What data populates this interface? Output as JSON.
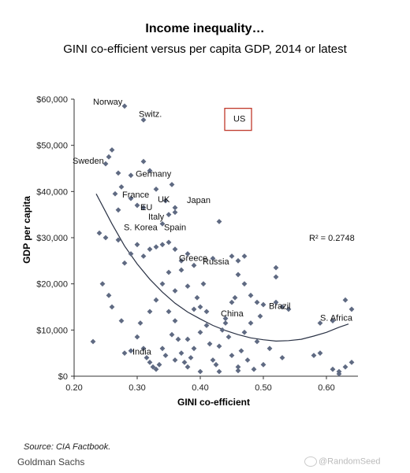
{
  "header": {
    "title": "Income inequality…",
    "subtitle": "GINI co-efficient versus per capita GDP, 2014 or latest"
  },
  "footer": {
    "source": "Source: CIA Factbook.",
    "publisher": "Goldman Sachs",
    "watermark": "@RandomSeed"
  },
  "chart_data": {
    "type": "scatter",
    "xlabel": "GINI co-efficient",
    "ylabel": "GDP per capita",
    "xlim": [
      0.2,
      0.65
    ],
    "ylim": [
      0,
      60000
    ],
    "x_ticks": [
      "0.20",
      "0.30",
      "0.40",
      "0.50",
      "0.60"
    ],
    "x_tick_values": [
      0.2,
      0.3,
      0.4,
      0.5,
      0.6
    ],
    "y_ticks": [
      "$0",
      "$10,000",
      "$20,000",
      "$30,000",
      "$40,000",
      "$50,000",
      "$60,000"
    ],
    "y_tick_values": [
      0,
      10000,
      20000,
      30000,
      40000,
      50000,
      60000
    ],
    "grid": false,
    "r_squared_label": "R² = 0.2748",
    "trendline": {
      "type": "polynomial",
      "x": [
        0.235,
        0.26,
        0.28,
        0.3,
        0.32,
        0.34,
        0.36,
        0.38,
        0.4,
        0.42,
        0.44,
        0.46,
        0.48,
        0.5,
        0.52,
        0.54,
        0.56,
        0.58,
        0.6,
        0.62,
        0.635
      ],
      "y": [
        39500,
        33000,
        28200,
        24300,
        21000,
        18200,
        15800,
        13900,
        12400,
        11000,
        9900,
        9000,
        8300,
        7900,
        7600,
        7700,
        8000,
        8700,
        9500,
        10600,
        11300
      ]
    },
    "highlight": {
      "label": "US",
      "x": 0.45,
      "y": 55800,
      "color": "#c0392b"
    },
    "labels": [
      {
        "text": "Norway",
        "x": 0.28,
        "y": 58500
      },
      {
        "text": "Switz.",
        "x": 0.31,
        "y": 56500
      },
      {
        "text": "US",
        "x": 0.45,
        "y": 55800
      },
      {
        "text": "Sweden",
        "x": 0.25,
        "y": 46200
      },
      {
        "text": "Germany",
        "x": 0.32,
        "y": 42500
      },
      {
        "text": "France",
        "x": 0.305,
        "y": 38500
      },
      {
        "text": "EU",
        "x": 0.31,
        "y": 36500
      },
      {
        "text": "UK",
        "x": 0.34,
        "y": 37300
      },
      {
        "text": "Japan",
        "x": 0.375,
        "y": 37800
      },
      {
        "text": "Italy",
        "x": 0.32,
        "y": 34300
      },
      {
        "text": "S. Korea",
        "x": 0.31,
        "y": 32100
      },
      {
        "text": "Spain",
        "x": 0.345,
        "y": 32100
      },
      {
        "text": "Greece",
        "x": 0.37,
        "y": 25500
      },
      {
        "text": "Russia",
        "x": 0.42,
        "y": 24700
      },
      {
        "text": "China",
        "x": 0.47,
        "y": 13500
      },
      {
        "text": "Brazil",
        "x": 0.52,
        "y": 14900
      },
      {
        "text": "S. Africa",
        "x": 0.63,
        "y": 12400
      },
      {
        "text": "India",
        "x": 0.33,
        "y": 5400
      }
    ],
    "points": [
      [
        0.26,
        49000
      ],
      [
        0.255,
        47500
      ],
      [
        0.25,
        46000
      ],
      [
        0.27,
        44000
      ],
      [
        0.275,
        41000
      ],
      [
        0.29,
        43500
      ],
      [
        0.31,
        46500
      ],
      [
        0.32,
        44500
      ],
      [
        0.265,
        39500
      ],
      [
        0.27,
        36000
      ],
      [
        0.25,
        30000
      ],
      [
        0.24,
        31000
      ],
      [
        0.27,
        29500
      ],
      [
        0.28,
        24500
      ],
      [
        0.29,
        26500
      ],
      [
        0.3,
        28500
      ],
      [
        0.31,
        26000
      ],
      [
        0.32,
        27500
      ],
      [
        0.33,
        28000
      ],
      [
        0.34,
        28500
      ],
      [
        0.35,
        29000
      ],
      [
        0.36,
        27500
      ],
      [
        0.37,
        25000
      ],
      [
        0.38,
        26500
      ],
      [
        0.34,
        33000
      ],
      [
        0.35,
        35000
      ],
      [
        0.36,
        35500
      ],
      [
        0.345,
        38000
      ],
      [
        0.33,
        40500
      ],
      [
        0.355,
        41500
      ],
      [
        0.31,
        36500
      ],
      [
        0.3,
        37000
      ],
      [
        0.29,
        38500
      ],
      [
        0.28,
        58500
      ],
      [
        0.31,
        55500
      ],
      [
        0.43,
        33500
      ],
      [
        0.42,
        25500
      ],
      [
        0.45,
        26000
      ],
      [
        0.46,
        25000
      ],
      [
        0.47,
        26000
      ],
      [
        0.46,
        22000
      ],
      [
        0.47,
        20000
      ],
      [
        0.48,
        17500
      ],
      [
        0.49,
        16000
      ],
      [
        0.5,
        15500
      ],
      [
        0.52,
        23500
      ],
      [
        0.52,
        21500
      ],
      [
        0.53,
        15000
      ],
      [
        0.54,
        14500
      ],
      [
        0.59,
        11500
      ],
      [
        0.61,
        12000
      ],
      [
        0.63,
        16500
      ],
      [
        0.64,
        14500
      ],
      [
        0.58,
        4500
      ],
      [
        0.59,
        5000
      ],
      [
        0.61,
        1500
      ],
      [
        0.62,
        1000
      ],
      [
        0.63,
        2000
      ],
      [
        0.64,
        3000
      ],
      [
        0.62,
        500
      ],
      [
        0.23,
        7500
      ],
      [
        0.245,
        20000
      ],
      [
        0.255,
        17500
      ],
      [
        0.26,
        15000
      ],
      [
        0.275,
        12000
      ],
      [
        0.28,
        5000
      ],
      [
        0.29,
        5500
      ],
      [
        0.3,
        8500
      ],
      [
        0.305,
        11500
      ],
      [
        0.31,
        6000
      ],
      [
        0.315,
        4000
      ],
      [
        0.32,
        3000
      ],
      [
        0.325,
        2000
      ],
      [
        0.33,
        1500
      ],
      [
        0.335,
        2500
      ],
      [
        0.34,
        6000
      ],
      [
        0.345,
        4500
      ],
      [
        0.35,
        14000
      ],
      [
        0.355,
        9000
      ],
      [
        0.36,
        12000
      ],
      [
        0.365,
        8000
      ],
      [
        0.37,
        5000
      ],
      [
        0.375,
        3000
      ],
      [
        0.38,
        2000
      ],
      [
        0.385,
        4000
      ],
      [
        0.39,
        6000
      ],
      [
        0.395,
        17000
      ],
      [
        0.4,
        15000
      ],
      [
        0.405,
        20000
      ],
      [
        0.41,
        11000
      ],
      [
        0.415,
        7000
      ],
      [
        0.42,
        3500
      ],
      [
        0.425,
        2500
      ],
      [
        0.43,
        6500
      ],
      [
        0.435,
        10000
      ],
      [
        0.44,
        12500
      ],
      [
        0.445,
        8500
      ],
      [
        0.45,
        4500
      ],
      [
        0.455,
        17000
      ],
      [
        0.46,
        2000
      ],
      [
        0.465,
        5500
      ],
      [
        0.47,
        9500
      ],
      [
        0.475,
        3500
      ],
      [
        0.48,
        11500
      ],
      [
        0.485,
        1500
      ],
      [
        0.49,
        7500
      ],
      [
        0.495,
        13000
      ],
      [
        0.5,
        2500
      ],
      [
        0.51,
        6000
      ],
      [
        0.52,
        16000
      ],
      [
        0.53,
        4000
      ],
      [
        0.35,
        22500
      ],
      [
        0.36,
        18500
      ],
      [
        0.38,
        19500
      ],
      [
        0.39,
        14500
      ],
      [
        0.4,
        9500
      ],
      [
        0.41,
        14000
      ],
      [
        0.44,
        11500
      ],
      [
        0.45,
        16000
      ],
      [
        0.36,
        36500
      ],
      [
        0.39,
        24000
      ],
      [
        0.34,
        20000
      ],
      [
        0.33,
        16500
      ],
      [
        0.37,
        23000
      ],
      [
        0.32,
        14000
      ],
      [
        0.36,
        3500
      ],
      [
        0.4,
        1000
      ],
      [
        0.43,
        1000
      ],
      [
        0.46,
        1200
      ],
      [
        0.38,
        8000
      ]
    ],
    "marker": {
      "shape": "diamond",
      "color": "#5f6a82"
    }
  }
}
